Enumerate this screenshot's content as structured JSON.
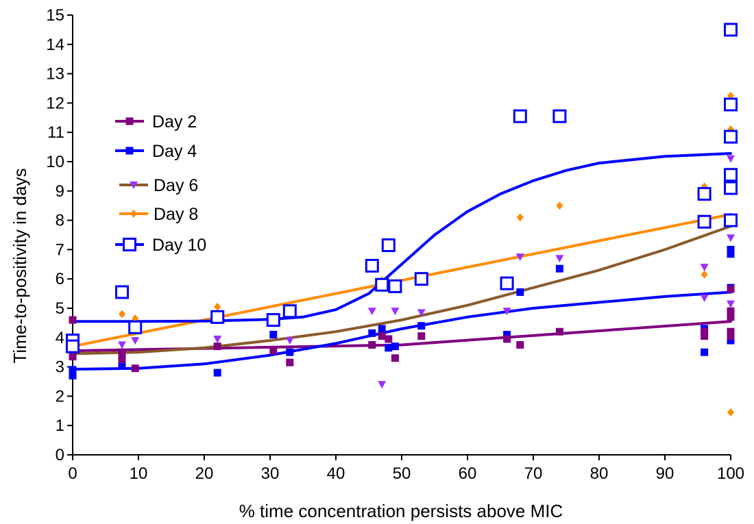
{
  "chart_data": {
    "type": "scatter",
    "xlabel": "% time concentration persists above MIC",
    "ylabel": "Time-to-positivity  in days",
    "xlim": [
      0,
      100
    ],
    "ylim": [
      0,
      15
    ],
    "x_ticks": [
      0,
      10,
      20,
      30,
      40,
      50,
      60,
      70,
      80,
      90,
      100
    ],
    "y_ticks": [
      0,
      1,
      2,
      3,
      4,
      5,
      6,
      7,
      8,
      9,
      10,
      11,
      12,
      13,
      14,
      15
    ],
    "grid": false,
    "legend_position": "upper-left",
    "series": [
      {
        "name": "Day 2",
        "color": "#800080",
        "marker": "square",
        "points": [
          [
            0,
            4.6
          ],
          [
            0,
            3.35
          ],
          [
            7.5,
            3.5
          ],
          [
            7.5,
            3.25
          ],
          [
            9.5,
            2.95
          ],
          [
            22,
            3.7
          ],
          [
            30.5,
            3.55
          ],
          [
            33,
            3.15
          ],
          [
            45.5,
            3.75
          ],
          [
            47,
            4.05
          ],
          [
            48,
            3.95
          ],
          [
            49,
            3.3
          ],
          [
            53,
            4.05
          ],
          [
            66,
            3.95
          ],
          [
            68,
            3.75
          ],
          [
            74,
            4.2
          ],
          [
            96,
            4.2
          ],
          [
            96,
            4.05
          ],
          [
            100,
            5.65
          ],
          [
            100,
            4.9
          ],
          [
            100,
            4.7
          ],
          [
            100,
            4.2
          ],
          [
            100,
            4.05
          ]
        ],
        "fit": [
          [
            0,
            3.55
          ],
          [
            50,
            3.75
          ],
          [
            100,
            4.55
          ]
        ]
      },
      {
        "name": "Day 4",
        "color": "#0000ff",
        "marker": "square",
        "points": [
          [
            0,
            2.9
          ],
          [
            0,
            2.7
          ],
          [
            7.5,
            3.1
          ],
          [
            22,
            2.8
          ],
          [
            30.5,
            4.1
          ],
          [
            33,
            3.5
          ],
          [
            45.5,
            4.15
          ],
          [
            47,
            4.3
          ],
          [
            48,
            3.65
          ],
          [
            49,
            3.7
          ],
          [
            53,
            4.4
          ],
          [
            66,
            4.1
          ],
          [
            68,
            5.55
          ],
          [
            74,
            6.35
          ],
          [
            96,
            4.3
          ],
          [
            96,
            3.5
          ],
          [
            100,
            7.0
          ],
          [
            100,
            6.85
          ],
          [
            100,
            5.7
          ],
          [
            100,
            4.1
          ],
          [
            100,
            3.9
          ]
        ],
        "fit": [
          [
            0,
            2.92
          ],
          [
            10,
            2.95
          ],
          [
            20,
            3.1
          ],
          [
            30,
            3.4
          ],
          [
            40,
            3.8
          ],
          [
            50,
            4.3
          ],
          [
            60,
            4.7
          ],
          [
            70,
            5.0
          ],
          [
            80,
            5.2
          ],
          [
            90,
            5.4
          ],
          [
            100,
            5.55
          ]
        ]
      },
      {
        "name": "Day 6",
        "color": "#9b30ff",
        "line_color": "#8b5a2b",
        "marker": "triangle-down",
        "points": [
          [
            0,
            3.7
          ],
          [
            7.5,
            3.75
          ],
          [
            9.5,
            3.9
          ],
          [
            22,
            3.95
          ],
          [
            33,
            3.9
          ],
          [
            45.5,
            4.9
          ],
          [
            47,
            2.4
          ],
          [
            49,
            4.9
          ],
          [
            53,
            4.85
          ],
          [
            66,
            4.9
          ],
          [
            68,
            6.75
          ],
          [
            74,
            6.7
          ],
          [
            96,
            6.4
          ],
          [
            96,
            5.35
          ],
          [
            100,
            10.1
          ],
          [
            100,
            7.4
          ],
          [
            100,
            5.15
          ]
        ],
        "fit": [
          [
            0,
            3.45
          ],
          [
            10,
            3.5
          ],
          [
            20,
            3.65
          ],
          [
            30,
            3.9
          ],
          [
            40,
            4.2
          ],
          [
            50,
            4.6
          ],
          [
            60,
            5.1
          ],
          [
            70,
            5.7
          ],
          [
            80,
            6.3
          ],
          [
            90,
            7.0
          ],
          [
            100,
            7.8
          ]
        ]
      },
      {
        "name": "Day 8",
        "color": "#ff8c00",
        "marker": "diamond",
        "points": [
          [
            7.5,
            4.8
          ],
          [
            9.5,
            4.65
          ],
          [
            22,
            5.05
          ],
          [
            47,
            5.95
          ],
          [
            68,
            8.1
          ],
          [
            74,
            8.5
          ],
          [
            96,
            9.15
          ],
          [
            96,
            6.15
          ],
          [
            100,
            12.25
          ],
          [
            100,
            11.1
          ],
          [
            100,
            1.45
          ]
        ],
        "fit": [
          [
            0,
            3.7
          ],
          [
            100,
            8.2
          ]
        ]
      },
      {
        "name": "Day 10",
        "color": "#0000ff",
        "marker": "open-square",
        "points": [
          [
            0,
            3.9
          ],
          [
            0,
            3.7
          ],
          [
            7.5,
            5.55
          ],
          [
            9.5,
            4.35
          ],
          [
            22,
            4.7
          ],
          [
            30.5,
            4.6
          ],
          [
            33,
            4.9
          ],
          [
            45.5,
            6.45
          ],
          [
            47,
            5.8
          ],
          [
            48,
            7.15
          ],
          [
            49,
            5.75
          ],
          [
            53,
            6.0
          ],
          [
            66,
            5.85
          ],
          [
            68,
            11.55
          ],
          [
            74,
            11.55
          ],
          [
            96,
            8.9
          ],
          [
            96,
            7.95
          ],
          [
            100,
            14.5
          ],
          [
            100,
            11.95
          ],
          [
            100,
            10.85
          ],
          [
            100,
            9.55
          ],
          [
            100,
            9.1
          ],
          [
            100,
            8.0
          ]
        ],
        "fit": [
          [
            0,
            4.55
          ],
          [
            10,
            4.55
          ],
          [
            20,
            4.56
          ],
          [
            30,
            4.62
          ],
          [
            35,
            4.7
          ],
          [
            40,
            4.95
          ],
          [
            45,
            5.5
          ],
          [
            50,
            6.5
          ],
          [
            55,
            7.5
          ],
          [
            60,
            8.3
          ],
          [
            65,
            8.9
          ],
          [
            70,
            9.35
          ],
          [
            75,
            9.7
          ],
          [
            80,
            9.95
          ],
          [
            90,
            10.18
          ],
          [
            100,
            10.28
          ]
        ]
      }
    ]
  }
}
